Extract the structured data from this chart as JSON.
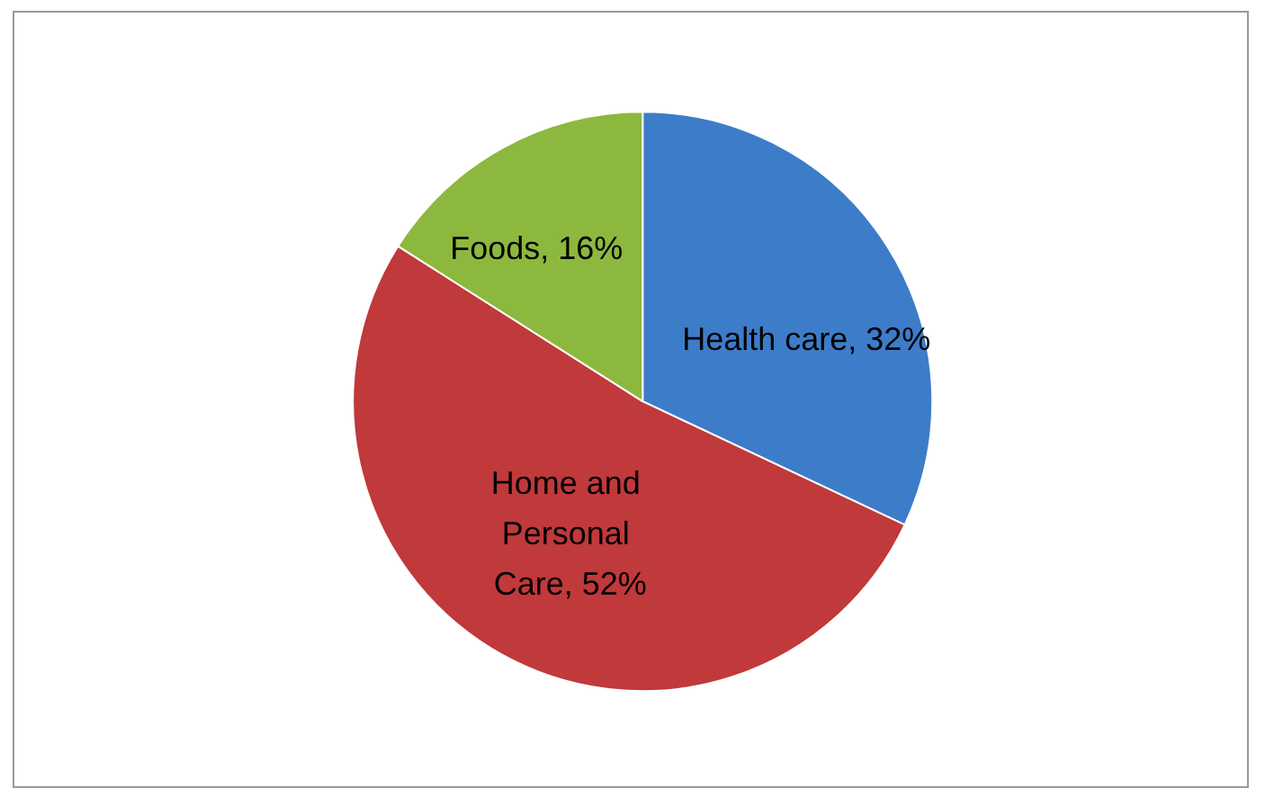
{
  "chart_data": {
    "type": "pie",
    "categories": [
      "Health care",
      "Home and Personal Care",
      "Foods"
    ],
    "values": [
      32,
      52,
      16
    ],
    "value_labels": [
      "32%",
      "52%",
      "16%"
    ],
    "colors": [
      "#3d7cc9",
      "#c0393b",
      "#8db83e"
    ],
    "legend": false
  }
}
